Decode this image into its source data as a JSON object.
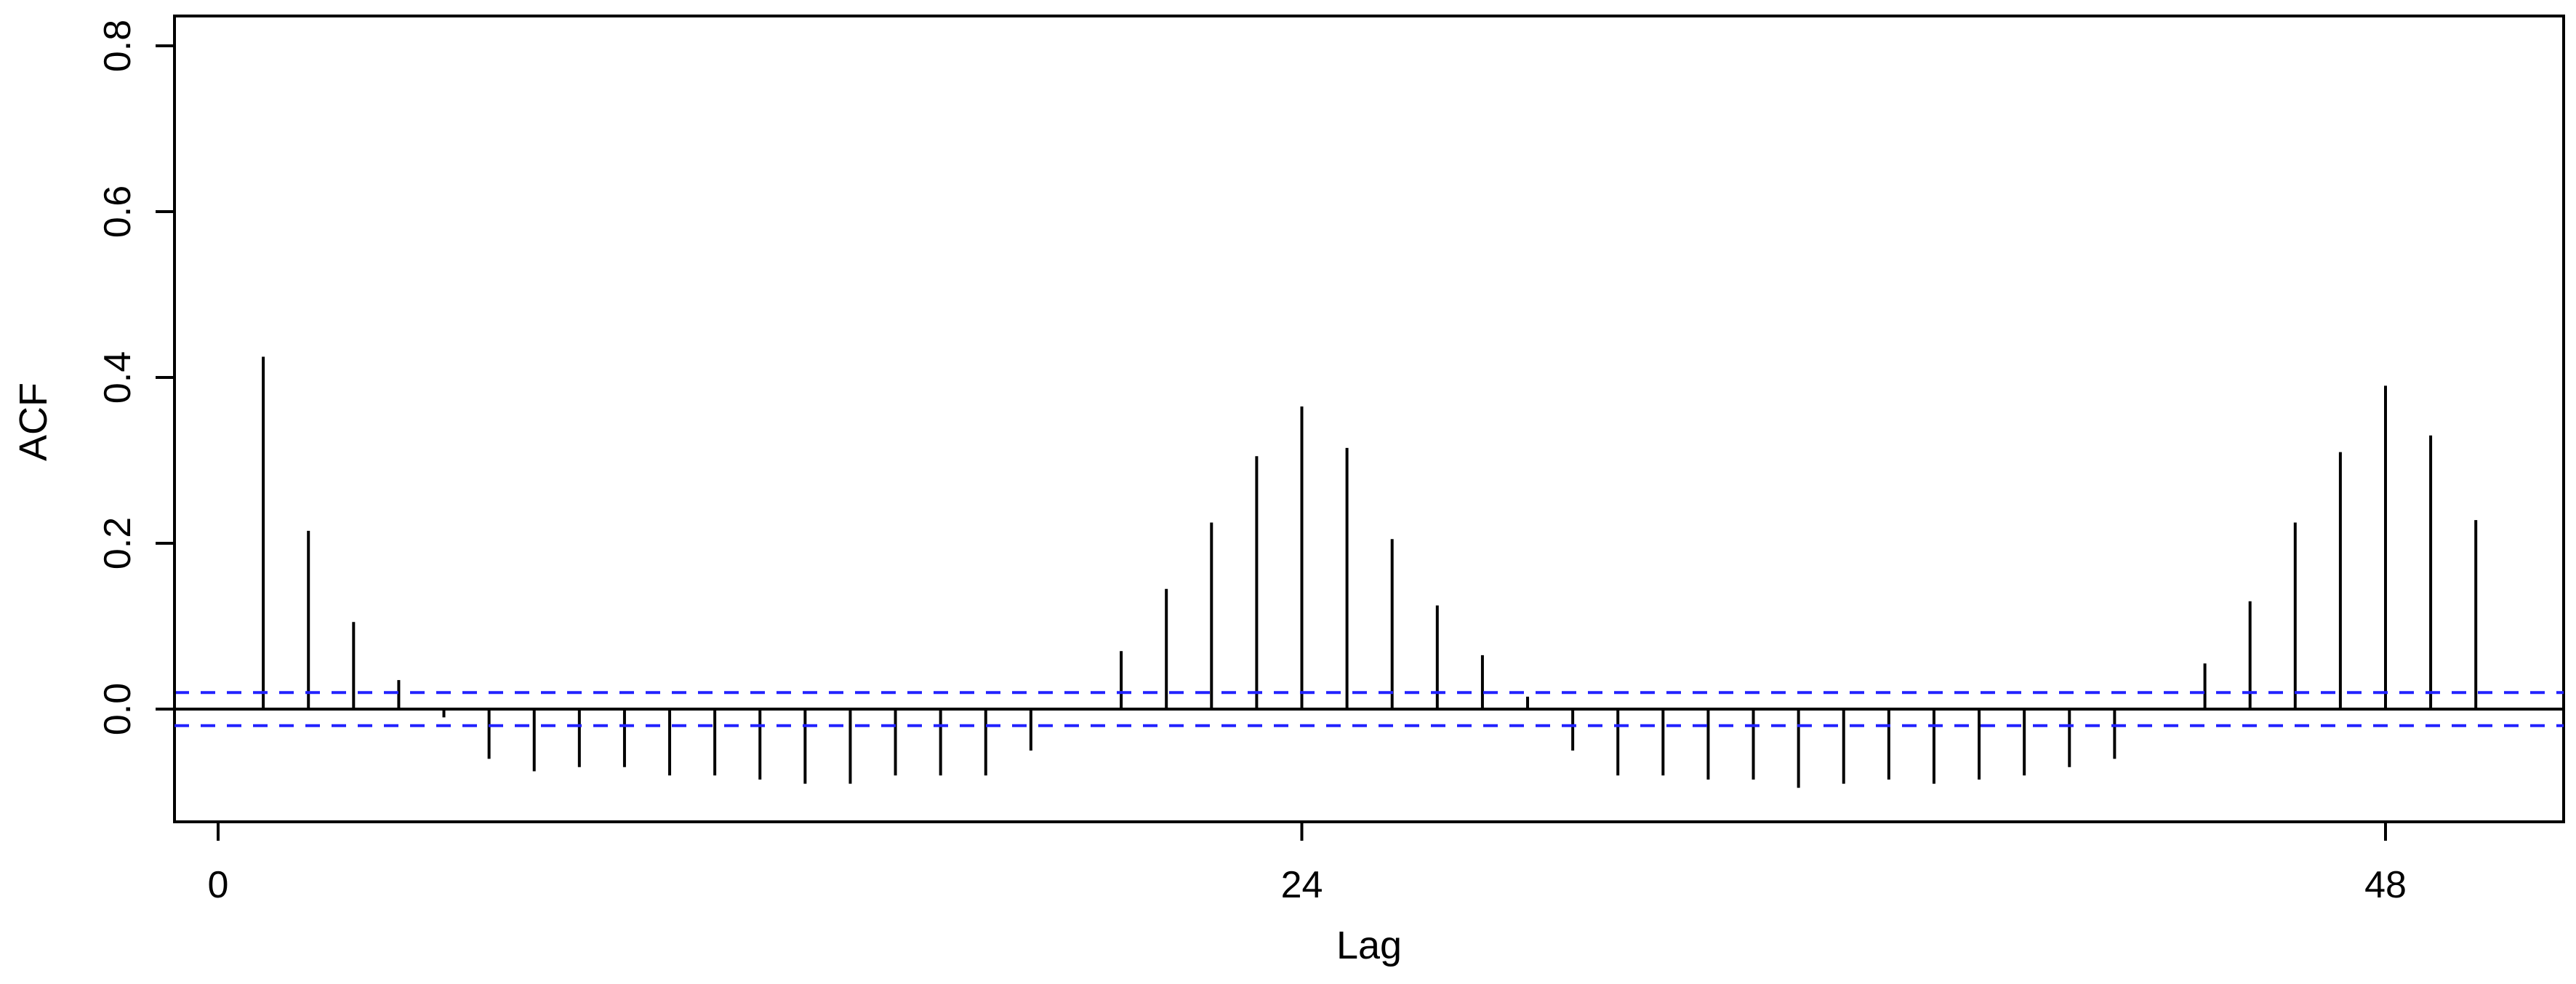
{
  "chart_data": {
    "type": "bar",
    "subtype": "acf-lollipop",
    "title": "",
    "xlabel": "Lag",
    "ylabel": "ACF",
    "xlim": [
      -1,
      51
    ],
    "ylim": [
      -0.13,
      0.83
    ],
    "x_ticks": [
      0,
      24,
      48
    ],
    "y_ticks": [
      0.0,
      0.2,
      0.4,
      0.6,
      0.8
    ],
    "y_tick_labels": [
      "0.0",
      "0.2",
      "0.4",
      "0.6",
      "0.8"
    ],
    "grid": false,
    "confidence_band": 0.02,
    "colors": {
      "bars": "#000000",
      "confidence": "#2222ff",
      "zero_line": "#000000",
      "frame": "#000000"
    },
    "lags": [
      1,
      2,
      3,
      4,
      5,
      6,
      7,
      8,
      9,
      10,
      11,
      12,
      13,
      14,
      15,
      16,
      17,
      18,
      19,
      20,
      21,
      22,
      23,
      24,
      25,
      26,
      27,
      28,
      29,
      30,
      31,
      32,
      33,
      34,
      35,
      36,
      37,
      38,
      39,
      40,
      41,
      42,
      43,
      44,
      45,
      46,
      47,
      48,
      49,
      50
    ],
    "values": [
      0.425,
      0.215,
      0.105,
      0.035,
      -0.01,
      -0.06,
      -0.075,
      -0.07,
      -0.07,
      -0.08,
      -0.08,
      -0.085,
      -0.09,
      -0.09,
      -0.08,
      -0.08,
      -0.08,
      -0.05,
      0.0,
      0.07,
      0.145,
      0.225,
      0.305,
      0.365,
      0.315,
      0.205,
      0.125,
      0.065,
      0.015,
      -0.05,
      -0.08,
      -0.08,
      -0.085,
      -0.085,
      -0.095,
      -0.09,
      -0.085,
      -0.09,
      -0.085,
      -0.08,
      -0.07,
      -0.06,
      0.0,
      0.055,
      0.13,
      0.225,
      0.31,
      0.39,
      0.33,
      0.228
    ]
  }
}
